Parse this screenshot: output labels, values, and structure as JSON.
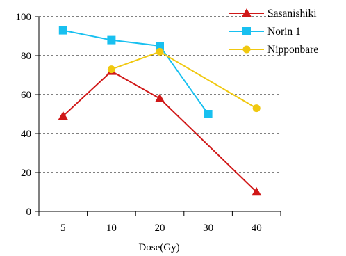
{
  "chart_data": {
    "type": "line",
    "title": "",
    "xlabel": "Dose(Gy)",
    "ylabel": "",
    "categories": [
      "5",
      "10",
      "20",
      "30",
      "40"
    ],
    "ylim": [
      0,
      100
    ],
    "yticks": [
      0,
      20,
      40,
      60,
      80,
      100
    ],
    "grid": "horizontal dashed",
    "legend_position": "top-right",
    "series": [
      {
        "name": "Sasanishiki",
        "marker": "triangle",
        "color": "#d01818",
        "values": [
          49,
          72,
          58,
          null,
          10
        ]
      },
      {
        "name": "Norin 1",
        "marker": "square",
        "color": "#18c0f0",
        "values": [
          93,
          88,
          85,
          50,
          null
        ]
      },
      {
        "name": "Nipponbare",
        "marker": "circle",
        "color": "#f0c810",
        "values": [
          null,
          73,
          82,
          null,
          53
        ]
      }
    ]
  }
}
